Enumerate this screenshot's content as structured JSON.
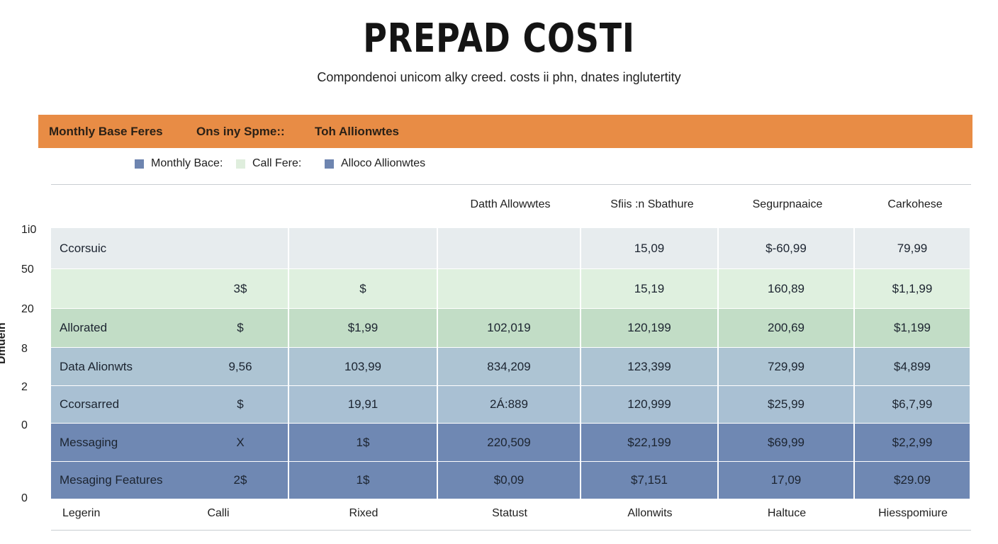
{
  "chart_data": {
    "type": "table",
    "title": "PREPAD COSTI",
    "subtitle": "Compondenoi unicom alky creed. costs ii phn, dnates inglutertity",
    "header_bar": [
      "Monthly Base Feres",
      "Ons iny Spme::",
      "Toh Allionwtes"
    ],
    "legend": [
      {
        "label": "Monthly Bace:",
        "color": "#6e85b0"
      },
      {
        "label": "Call Fere:",
        "color": "#dfeedd"
      },
      {
        "label": "Alloco Allionwtes",
        "color": "#6e85b0"
      }
    ],
    "columns": [
      "",
      "",
      "",
      "Datth Allowwtes",
      "Sfiis :n Sbathure",
      "Segurpnaaice",
      "Carkohese"
    ],
    "footer": [
      "Legerin",
      "Calli",
      "Rixed",
      "Statust",
      "Allonwits",
      "Haltuce",
      "Hiesspomiure"
    ],
    "y_axis_label": "Dmuein",
    "y_ticks": [
      "1i0",
      "50",
      "20",
      "8",
      "2",
      "0",
      "0"
    ],
    "rows": [
      {
        "cells": [
          "Ccorsuic",
          "",
          "",
          "",
          "15,09",
          "$-60,99",
          "79,99"
        ],
        "color": "#e7ecee"
      },
      {
        "cells": [
          "",
          "3$",
          "$",
          "",
          "15,19",
          "160,89",
          "$1,1,99"
        ],
        "color": "#dff0df"
      },
      {
        "cells": [
          "Allorated",
          "$",
          "$1,99",
          "102,019",
          "120,199",
          "200,69",
          "$1,199"
        ],
        "color": "#c2ddc6"
      },
      {
        "cells": [
          "Data Alionwts",
          "9,56",
          "103,99",
          "834,209",
          "123,399",
          "729,99",
          "$4,899"
        ],
        "color": "#adc4d3"
      },
      {
        "cells": [
          "Ccorsarred",
          "$",
          "19,91",
          "2Á:889",
          "120,999",
          "$25,99",
          "$6,7,99"
        ],
        "color": "#a9c0d3"
      },
      {
        "cells": [
          "Messaging",
          "X",
          "1$",
          "220,509",
          "$22,199",
          "$69,99",
          "$2,2,99"
        ],
        "color": "#6f88b3"
      },
      {
        "cells": [
          "Mesaging Features",
          "2$",
          "1$",
          "$0,09",
          "$7,151",
          "17,09",
          "$29.09"
        ],
        "color": "#6f88b3"
      }
    ]
  }
}
